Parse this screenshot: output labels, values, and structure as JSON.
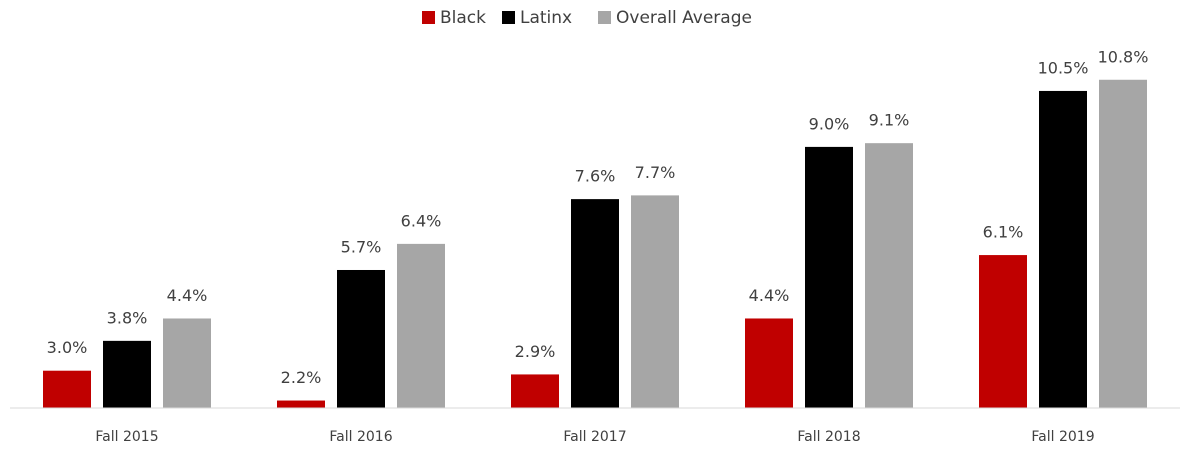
{
  "chart_data": {
    "type": "bar",
    "categories": [
      "Fall 2015",
      "Fall 2016",
      "Fall 2017",
      "Fall 2018",
      "Fall 2019"
    ],
    "series": [
      {
        "name": "Black",
        "color": "#c00000",
        "values": [
          3.0,
          2.2,
          2.9,
          4.4,
          6.1
        ],
        "value_labels": [
          "3.0%",
          "2.2%",
          "2.9%",
          "4.4%",
          "6.1%"
        ]
      },
      {
        "name": "Latinx",
        "color": "#000000",
        "values": [
          3.8,
          5.7,
          7.6,
          9.0,
          10.5
        ],
        "value_labels": [
          "3.8%",
          "5.7%",
          "7.6%",
          "9.0%",
          "10.5%"
        ]
      },
      {
        "name": "Overall Average",
        "color": "#a6a6a6",
        "values": [
          4.4,
          6.4,
          7.7,
          9.1,
          10.8
        ],
        "value_labels": [
          "4.4%",
          "6.4%",
          "7.7%",
          "9.1%",
          "10.8%"
        ]
      }
    ],
    "ylim": [
      2,
      12
    ],
    "legend": "top"
  }
}
